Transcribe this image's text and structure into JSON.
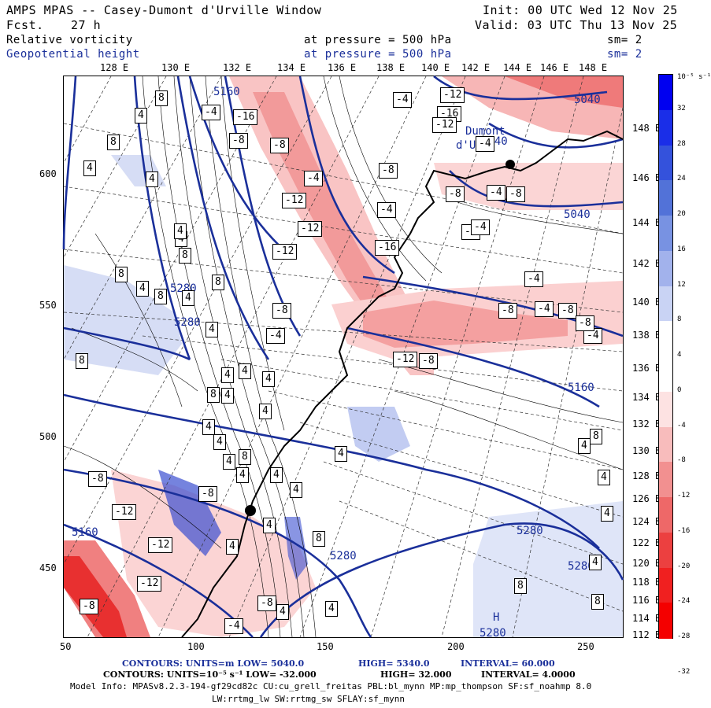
{
  "header": {
    "title": "AMPS MPAS -- Casey-Dumont d'Urville Window",
    "fcst_label": "Fcst.",
    "fcst_value": "27 h",
    "init": "Init: 00 UTC Wed 12 Nov 25",
    "valid": "Valid: 03 UTC Thu 13 Nov 25",
    "field1_name": "Relative vorticity",
    "field1_level": "at pressure =  500 hPa",
    "field1_sm": "sm= 2",
    "field2_name": "Geopotential height",
    "field2_level": "at pressure =  500 hPa",
    "field2_sm": "sm= 2"
  },
  "top_lon_labels": [
    "128 E",
    "130 E",
    "132 E",
    "134 E",
    "136 E",
    "138 E",
    "140 E",
    "142 E",
    "144 E",
    "146 E",
    "148 E"
  ],
  "right_lat_labels": [
    "148 E",
    "146 E",
    "144 E",
    "142 E",
    "140 E",
    "138 E",
    "136 E",
    "134 E",
    "132 E",
    "130 E",
    "128 E",
    "126 E",
    "124 E",
    "122 E",
    "120 E",
    "118 E",
    "116 E",
    "114 E",
    "112 E"
  ],
  "left_y_labels": [
    "600",
    "550",
    "500",
    "450"
  ],
  "bottom_x_labels": [
    "50",
    "100",
    "150",
    "200",
    "250"
  ],
  "colorbar": {
    "unit": "10⁻⁵ s⁻¹",
    "labels": [
      "32",
      "28",
      "24",
      "20",
      "16",
      "12",
      "8",
      "4",
      "0",
      "-4",
      "-8",
      "-12",
      "-16",
      "-20",
      "-24",
      "-28",
      "-32"
    ],
    "colors": [
      "#0000f0",
      "#1a2ee8",
      "#3452dc",
      "#5272d8",
      "#7892e2",
      "#a2b2ec",
      "#c9d3f4",
      "#ffffff",
      "#ffffff",
      "#fde2e2",
      "#f8bcbc",
      "#f29090",
      "#ee6868",
      "#ec4040",
      "#f02020",
      "#f40000"
    ]
  },
  "map": {
    "contour_labels_height": [
      {
        "t": "5160"
      },
      {
        "t": "5040"
      },
      {
        "t": "5040"
      },
      {
        "t": "5040"
      },
      {
        "t": "5280"
      },
      {
        "t": "5280"
      },
      {
        "t": "5160"
      },
      {
        "t": "5160"
      },
      {
        "t": "5280"
      },
      {
        "t": "5280"
      },
      {
        "t": "5280"
      },
      {
        "t": "5280"
      }
    ],
    "vort_boxes": [
      "8",
      "4",
      "-4",
      "-16",
      "-8",
      "8",
      "-8",
      "-8",
      "-12",
      "-16",
      "-4",
      "-12",
      "-4",
      "-4",
      "-12",
      "-12",
      "-12",
      "-16",
      "-8",
      "-8",
      "-4",
      "-4",
      "-8",
      "-4",
      "-4",
      "-4",
      "-8",
      "-4",
      "-8",
      "-4",
      "-8",
      "-4",
      "8",
      "-12",
      "-8",
      "4",
      "8",
      "4",
      "8",
      "4",
      "4",
      "4",
      "4",
      "8",
      "4",
      "8",
      "4",
      "8",
      "4",
      "4",
      "4",
      "4",
      "4",
      "4",
      "4",
      "4",
      "4",
      "8",
      "4",
      "-8",
      "-12",
      "-12",
      "4",
      "4",
      "8",
      "4",
      "4",
      "8",
      "4",
      "4",
      "4",
      "-8",
      "-4",
      "-8",
      "4",
      "-8",
      "-12",
      "4",
      "8",
      "8"
    ],
    "labels": {
      "dumont": "Dumont",
      "durville": "d'Urv",
      "high": "H"
    }
  },
  "footer": {
    "line1_a": "CONTOURS:  UNITS=m  LOW=  5040.0",
    "line1_b": "HIGH=  5340.0",
    "line1_c": "INTERVAL=   60.000",
    "line2_a": "CONTOURS:  UNITS=10⁻⁵ s⁻¹  LOW=  -32.000",
    "line2_b": "HIGH=  32.000",
    "line2_c": "INTERVAL=   4.0000",
    "line3": "Model Info: MPASv8.2.3-194-gf29cd82c CU:cu_grell_freitas PBL:bl_mynn MP:mp_thompson SF:sf_noahmp 8.0",
    "line4": "LW:rrtmg_lw SW:rrtmg_sw SFLAY:sf_mynn"
  }
}
